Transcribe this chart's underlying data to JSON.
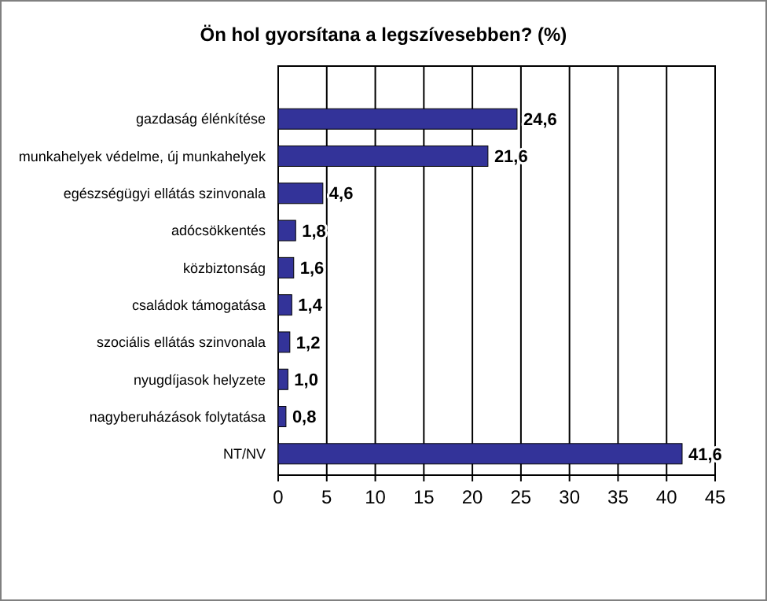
{
  "chart_data": {
    "type": "bar",
    "orientation": "horizontal",
    "title": "Ön hol gyorsítana a legszívesebben? (%)",
    "categories": [
      "gazdaság élénkítése",
      "munkahelyek védelme, új munkahelyek",
      "egészségügyi ellátás szinvonala",
      "adócsökkentés",
      "közbiztonság",
      "családok támogatása",
      "szociális ellátás szinvonala",
      "nyugdíjasok helyzete",
      "nagyberuházások folytatása",
      "NT/NV"
    ],
    "values": [
      24.6,
      21.6,
      4.6,
      1.8,
      1.6,
      1.4,
      1.2,
      1.0,
      0.8,
      41.6
    ],
    "value_labels": [
      "24,6",
      "21,6",
      "4,6",
      "1,8",
      "1,6",
      "1,4",
      "1,2",
      "1,0",
      "0,8",
      "41,6"
    ],
    "color": "#333399",
    "xlim": [
      0,
      45
    ],
    "xticks": [
      0,
      5,
      10,
      15,
      20,
      25,
      30,
      35,
      40,
      45
    ],
    "grid": "x"
  }
}
